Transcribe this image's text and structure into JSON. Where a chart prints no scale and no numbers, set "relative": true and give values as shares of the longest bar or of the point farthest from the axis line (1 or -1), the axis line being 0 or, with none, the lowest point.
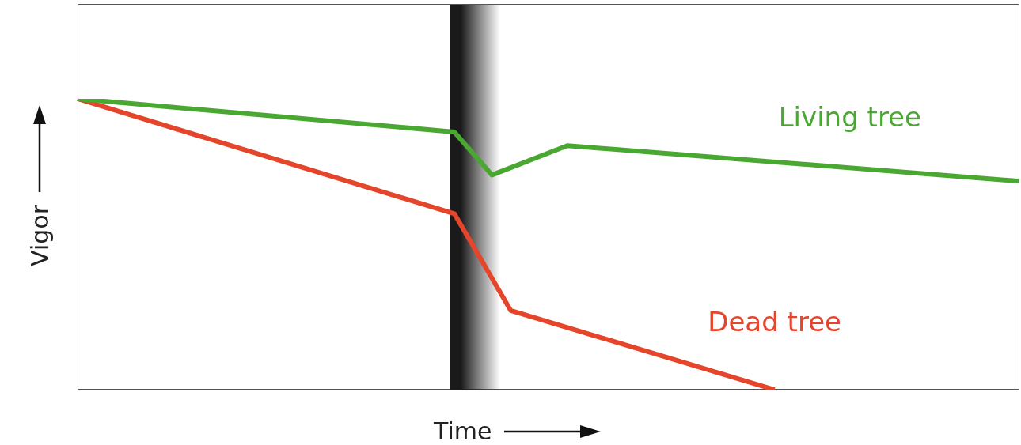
{
  "chart_data": {
    "type": "line",
    "relative": true,
    "xlabel": "Time",
    "ylabel": "Vigor",
    "legend": false,
    "marker": "none",
    "line_style": "solid",
    "categories": [
      null,
      null,
      null,
      null,
      null,
      null,
      null,
      null,
      null,
      null,
      null,
      null,
      null,
      null,
      null,
      null,
      null,
      null,
      null,
      null,
      null,
      null,
      null,
      null,
      null,
      null,
      null,
      null,
      null,
      null,
      null,
      null,
      null,
      null,
      null,
      null,
      null,
      null,
      null,
      null,
      null,
      null,
      null,
      null,
      null,
      null,
      null,
      null,
      null,
      null,
      null
    ],
    "series": [
      {
        "name": "Living tree",
        "color": "#4aa832",
        "values": [
          1,
          null,
          null,
          null,
          null,
          null,
          null,
          null,
          null,
          null,
          null,
          null,
          null,
          null,
          null,
          null,
          null,
          null,
          null,
          null,
          0.886,
          null,
          0.738,
          null,
          null,
          null,
          0.839,
          null,
          null,
          null,
          null,
          null,
          null,
          null,
          null,
          null,
          null,
          null,
          null,
          null,
          null,
          null,
          null,
          null,
          null,
          null,
          null,
          null,
          null,
          null,
          0.717
        ]
      },
      {
        "name": "Dead tree",
        "color": "#e5452a",
        "values": [
          1,
          null,
          null,
          null,
          null,
          null,
          null,
          null,
          null,
          null,
          null,
          null,
          null,
          null,
          null,
          null,
          null,
          null,
          null,
          null,
          0.605,
          null,
          null,
          0.272,
          null,
          null,
          null,
          null,
          null,
          null,
          null,
          null,
          null,
          null,
          null,
          null,
          null,
          0,
          null,
          null,
          null,
          null,
          null,
          null,
          null,
          null,
          null,
          null,
          null,
          null,
          null
        ]
      }
    ]
  }
}
